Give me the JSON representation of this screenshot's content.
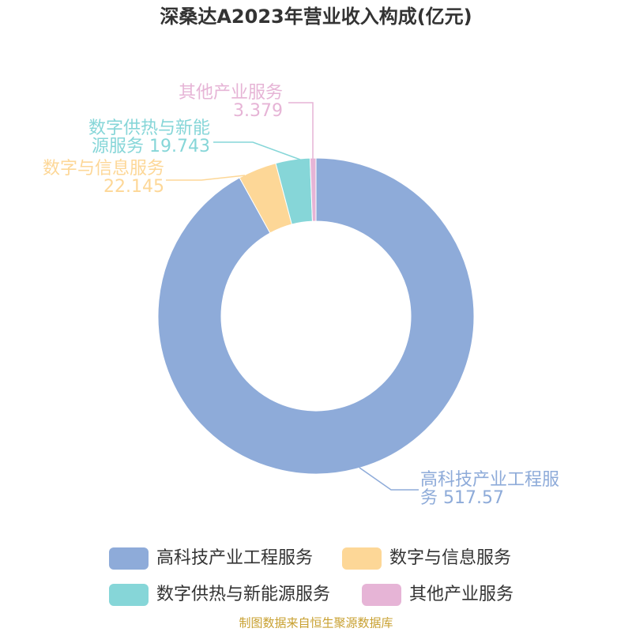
{
  "chart_data": {
    "type": "pie",
    "donut": true,
    "title": "深桑达A2023年营业收入构成(亿元)",
    "categories": [
      "高科技产业工程服务",
      "数字与信息服务",
      "数字供热与新能源服务",
      "其他产业服务"
    ],
    "values": [
      517.57,
      22.145,
      19.743,
      3.379
    ],
    "colors": [
      "#8eabd9",
      "#fdd797",
      "#86d6d8",
      "#e6b4d6"
    ],
    "source": "制图数据来自恒生聚源数据库"
  }
}
